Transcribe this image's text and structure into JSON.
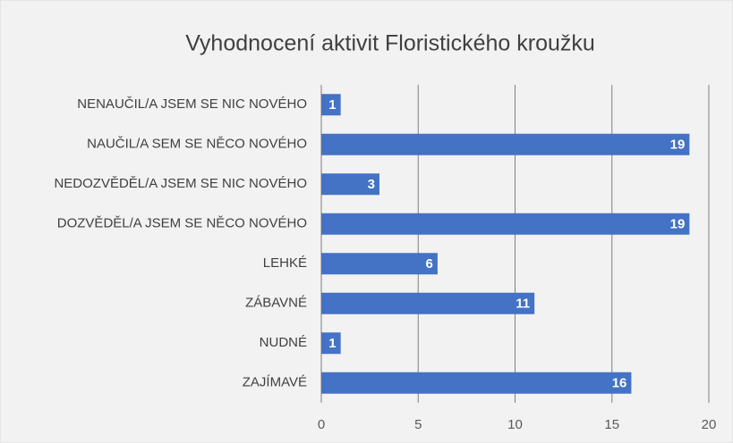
{
  "chart_data": {
    "type": "bar",
    "orientation": "horizontal",
    "title": "Vyhodnocení aktivit Floristického kroužku",
    "categories": [
      "NENAUČIL/A JSEM SE NIC NOVÉHO",
      "NAUČIL/A SEM SE NĚCO NOVÉHO",
      "NEDOZVĚDĚL/A JSEM SE NIC NOVÉHO",
      "DOZVĚDĚL/A JSEM SE NĚCO NOVÉHO",
      "LEHKÉ",
      "ZÁBAVNÉ",
      "NUDNÉ",
      "ZAJÍMAVÉ"
    ],
    "values": [
      1,
      19,
      3,
      19,
      6,
      11,
      1,
      16
    ],
    "color": "#4472c4",
    "xlim": [
      0,
      20
    ],
    "xticks": [
      0,
      5,
      10,
      15,
      20
    ],
    "grid": true
  }
}
